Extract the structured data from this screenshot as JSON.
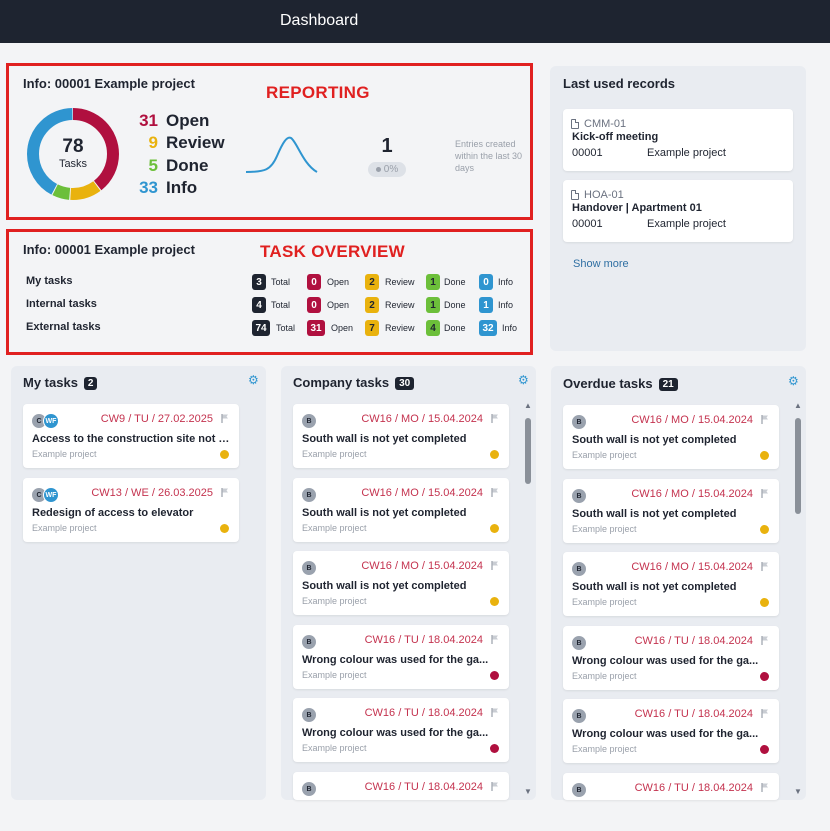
{
  "app": {
    "title": "Dashboard"
  },
  "annotations": {
    "reporting": "REPORTING",
    "task_overview": "TASK OVERVIEW"
  },
  "colors": {
    "open": "#b0103f",
    "review": "#e9b20e",
    "done": "#6cbf3a",
    "info": "#2f95d0",
    "dark": "#1e2430",
    "accent_red_box": "#e02020"
  },
  "reporting": {
    "title": "Info: 00001 Example project",
    "total": "78",
    "total_label": "Tasks",
    "stats": [
      {
        "n": "31",
        "label": "Open",
        "color": "#b0103f"
      },
      {
        "n": "9",
        "label": "Review",
        "color": "#e9b20e"
      },
      {
        "n": "5",
        "label": "Done",
        "color": "#6cbf3a"
      },
      {
        "n": "33",
        "label": "Info",
        "color": "#2f95d0"
      }
    ],
    "entries_count": "1",
    "entries_pct": "0%",
    "entries_caption": "Entries created within the last 30 days"
  },
  "overview": {
    "title": "Info: 00001 Example project",
    "labels": {
      "total": "Total",
      "open": "Open",
      "review": "Review",
      "done": "Done",
      "info": "Info"
    },
    "rows": [
      {
        "label": "My tasks",
        "total": "3",
        "open": "0",
        "review": "2",
        "done": "1",
        "info": "0"
      },
      {
        "label": "Internal tasks",
        "total": "4",
        "open": "0",
        "review": "2",
        "done": "1",
        "info": "1"
      },
      {
        "label": "External tasks",
        "total": "74",
        "open": "31",
        "review": "7",
        "done": "4",
        "info": "32"
      }
    ]
  },
  "last_used": {
    "title": "Last used records",
    "records": [
      {
        "code": "CMM-01",
        "name": "Kick-off meeting",
        "project_no": "00001",
        "project": "Example project"
      },
      {
        "code": "HOA-01",
        "name": "Handover | Apartment 01",
        "project_no": "00001",
        "project": "Example project"
      }
    ],
    "show_more": "Show more"
  },
  "columns": [
    {
      "title": "My tasks",
      "count": "2",
      "cards": [
        {
          "avatars": [
            "C",
            "WF"
          ],
          "date": "CW9 / TU / 27.02.2025",
          "title": "Access to the construction site not p...",
          "project": "Example project",
          "status": "review"
        },
        {
          "avatars": [
            "C",
            "WF"
          ],
          "date": "CW13 / WE / 26.03.2025",
          "title": "Redesign of access to elevator",
          "project": "Example project",
          "status": "review"
        }
      ]
    },
    {
      "title": "Company tasks",
      "count": "30",
      "cards": [
        {
          "avatars": [
            "B"
          ],
          "date": "CW16 / MO / 15.04.2024",
          "title": "South wall is not yet completed",
          "project": "Example project",
          "status": "review"
        },
        {
          "avatars": [
            "B"
          ],
          "date": "CW16 / MO / 15.04.2024",
          "title": "South wall is not yet completed",
          "project": "Example project",
          "status": "review"
        },
        {
          "avatars": [
            "B"
          ],
          "date": "CW16 / MO / 15.04.2024",
          "title": "South wall is not yet completed",
          "project": "Example project",
          "status": "review"
        },
        {
          "avatars": [
            "B"
          ],
          "date": "CW16 / TU / 18.04.2024",
          "title": "Wrong colour was used for the ga...",
          "project": "Example project",
          "status": "open"
        },
        {
          "avatars": [
            "B"
          ],
          "date": "CW16 / TU / 18.04.2024",
          "title": "Wrong colour was used for the ga...",
          "project": "Example project",
          "status": "open"
        },
        {
          "avatars": [
            "B"
          ],
          "date": "CW16 / TU / 18.04.2024",
          "title": "",
          "project": "",
          "status": ""
        }
      ]
    },
    {
      "title": "Overdue tasks",
      "count": "21",
      "cards": [
        {
          "avatars": [
            "B"
          ],
          "date": "CW16 / MO / 15.04.2024",
          "title": "South wall is not yet completed",
          "project": "Example project",
          "status": "review"
        },
        {
          "avatars": [
            "B"
          ],
          "date": "CW16 / MO / 15.04.2024",
          "title": "South wall is not yet completed",
          "project": "Example project",
          "status": "review"
        },
        {
          "avatars": [
            "B"
          ],
          "date": "CW16 / MO / 15.04.2024",
          "title": "South wall is not yet completed",
          "project": "Example project",
          "status": "review"
        },
        {
          "avatars": [
            "B"
          ],
          "date": "CW16 / TU / 18.04.2024",
          "title": "Wrong colour was used for the ga...",
          "project": "Example project",
          "status": "open"
        },
        {
          "avatars": [
            "B"
          ],
          "date": "CW16 / TU / 18.04.2024",
          "title": "Wrong colour was used for the ga...",
          "project": "Example project",
          "status": "open"
        },
        {
          "avatars": [
            "B"
          ],
          "date": "CW16 / TU / 18.04.2024",
          "title": "",
          "project": "",
          "status": ""
        }
      ]
    }
  ]
}
